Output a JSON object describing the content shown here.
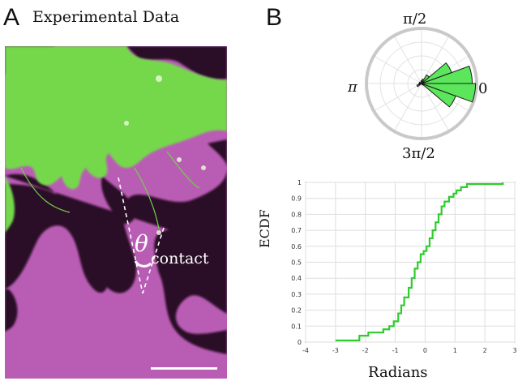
{
  "panel_a": {
    "letter": "A",
    "title": "Experimental Data",
    "angle_symbol": "θ",
    "angle_subscript": "contact",
    "colors": {
      "green": "#74d84c",
      "magenta": "#c067bd",
      "dark": "#2a0a25",
      "background_bright": "#e9c8e8"
    }
  },
  "panel_b": {
    "letter": "B"
  },
  "chart_data": [
    {
      "type": "polar-histogram",
      "angle_labels": [
        "π/2",
        "π",
        "0",
        "3π/2"
      ],
      "bins_degrees": [
        {
          "start": 0,
          "end": 20,
          "r": 0.92
        },
        {
          "start": 20,
          "end": 40,
          "r": 0.58
        },
        {
          "start": 40,
          "end": 60,
          "r": 0.18
        },
        {
          "start": 60,
          "end": 80,
          "r": 0.08
        },
        {
          "start": 80,
          "end": 100,
          "r": 0.05
        },
        {
          "start": 140,
          "end": 160,
          "r": 0.04
        },
        {
          "start": 180,
          "end": 200,
          "r": 0.05
        },
        {
          "start": 200,
          "end": 220,
          "r": 0.09
        },
        {
          "start": 300,
          "end": 320,
          "r": 0.03
        },
        {
          "start": 320,
          "end": 340,
          "r": 0.66
        },
        {
          "start": 340,
          "end": 360,
          "r": 0.98
        }
      ],
      "fill_color": "#5ce65c"
    },
    {
      "type": "line",
      "xlabel": "Radians",
      "ylabel": "ECDF",
      "xlim": [
        -4,
        3
      ],
      "ylim": [
        0,
        1
      ],
      "xticks": [
        "-4",
        "-3",
        "-2",
        "-1",
        "0",
        "1",
        "2",
        "3"
      ],
      "yticks": [
        "0",
        "0.1",
        "0.2",
        "0.3",
        "0.4",
        "0.5",
        "0.6",
        "0.7",
        "0.8",
        "0.9",
        "1"
      ],
      "grid": true,
      "line_color": "#2ecc2e",
      "x": [
        -3.0,
        -2.2,
        -1.9,
        -1.4,
        -1.2,
        -1.05,
        -0.9,
        -0.8,
        -0.7,
        -0.55,
        -0.45,
        -0.35,
        -0.25,
        -0.15,
        -0.05,
        0.05,
        0.15,
        0.25,
        0.35,
        0.45,
        0.55,
        0.65,
        0.8,
        0.95,
        1.05,
        1.2,
        1.4,
        2.6
      ],
      "y": [
        0.01,
        0.04,
        0.06,
        0.08,
        0.1,
        0.13,
        0.18,
        0.23,
        0.28,
        0.34,
        0.4,
        0.46,
        0.5,
        0.55,
        0.57,
        0.6,
        0.65,
        0.7,
        0.75,
        0.8,
        0.85,
        0.88,
        0.91,
        0.93,
        0.95,
        0.97,
        0.99,
        1.0
      ]
    }
  ]
}
